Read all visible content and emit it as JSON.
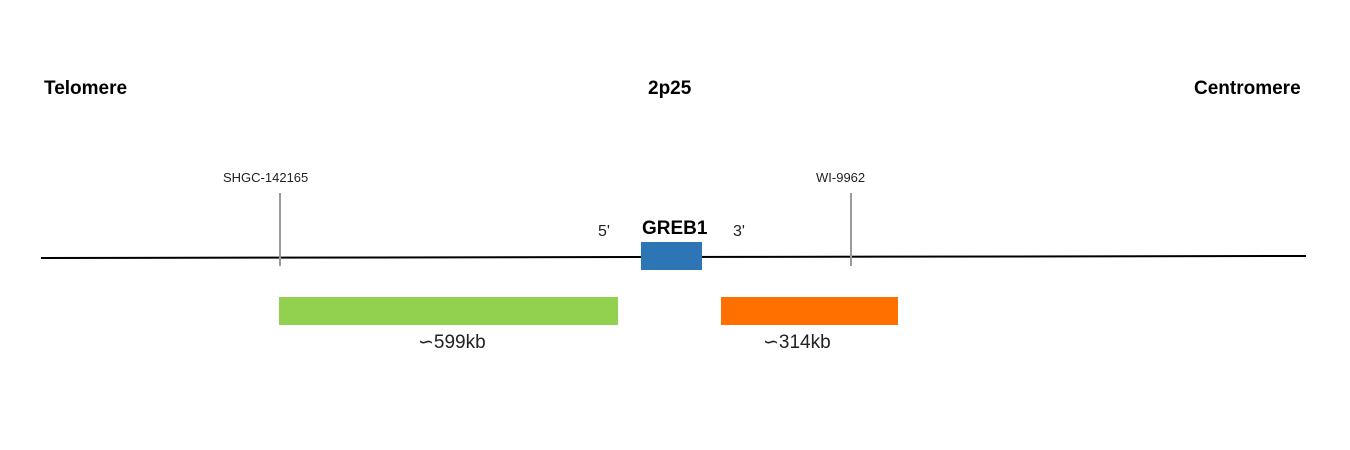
{
  "headings": {
    "left": "Telomere",
    "center": "2p25",
    "right": "Centromere"
  },
  "markers": [
    {
      "label": "SHGC-142165"
    },
    {
      "label": "WI-9962"
    }
  ],
  "gene": {
    "name": "GREB1",
    "five_prime": "5'",
    "three_prime": "3'",
    "color": "#2e75b6"
  },
  "regions": [
    {
      "label": "∽599kb",
      "color": "#92d050"
    },
    {
      "label": "∽314kb",
      "color": "#ff7000"
    }
  ]
}
